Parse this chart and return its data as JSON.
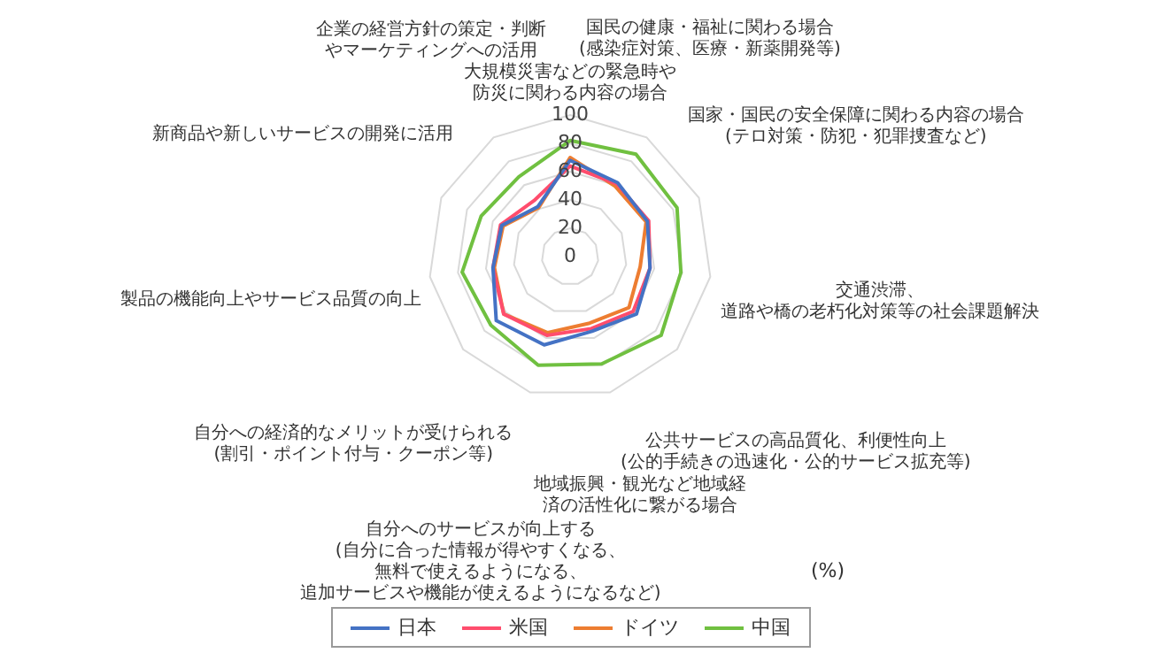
{
  "chart_data": {
    "type": "radar",
    "categories": [
      "大規模災害などの緊急時や防災に関わる内容の場合",
      "国民の健康・福祉に関わる場合(感染症対策、医療・新薬開発等)",
      "国家・国民の安全保障に関わる内容の場合(テロ対策・防犯・犯罪捜査など)",
      "交通渋滞、道路や橋の老朽化対策等の社会課題解決",
      "公共サービスの高品質化、利便性向上(公的手続きの迅速化・公的サービス拡充等)",
      "地域振興・観光など地域経済の活性化に繋がる場合",
      "自分へのサービスが向上する(自分に合った情報が得やすくなる、無料で使えるようになる、追加サービスや機能が使えるようになるなど)",
      "自分への経済的なメリットが受けられる(割引・ポイント付与・クーポン等)",
      "製品の機能向上やサービス品質の向上",
      "新商品や新しいサービスの開発に活用",
      "企業の経営方針の策定・判断やマーケティングへの活用"
    ],
    "series": [
      {
        "name": "日本",
        "color": "#4472c4",
        "values": [
          68,
          62,
          60,
          57,
          62,
          55,
          65,
          69,
          55,
          53,
          42
        ]
      },
      {
        "name": "米国",
        "color": "#ff4d6d",
        "values": [
          64,
          61,
          61,
          57,
          59,
          53,
          58,
          62,
          55,
          54,
          47
        ]
      },
      {
        "name": "ドイツ",
        "color": "#ed7d31",
        "values": [
          70,
          59,
          59,
          50,
          55,
          49,
          56,
          62,
          54,
          52,
          41
        ]
      },
      {
        "name": "中国",
        "color": "#70c040",
        "values": [
          82,
          86,
          83,
          79,
          85,
          79,
          80,
          74,
          77,
          69,
          67
        ]
      }
    ],
    "ylim": [
      0,
      100
    ],
    "yticks": [
      0,
      20,
      40,
      60,
      80,
      100
    ],
    "grid": true,
    "legend": "bottom",
    "marker": "none",
    "line_style": "solid",
    "annotations": [
      "(%)"
    ]
  }
}
